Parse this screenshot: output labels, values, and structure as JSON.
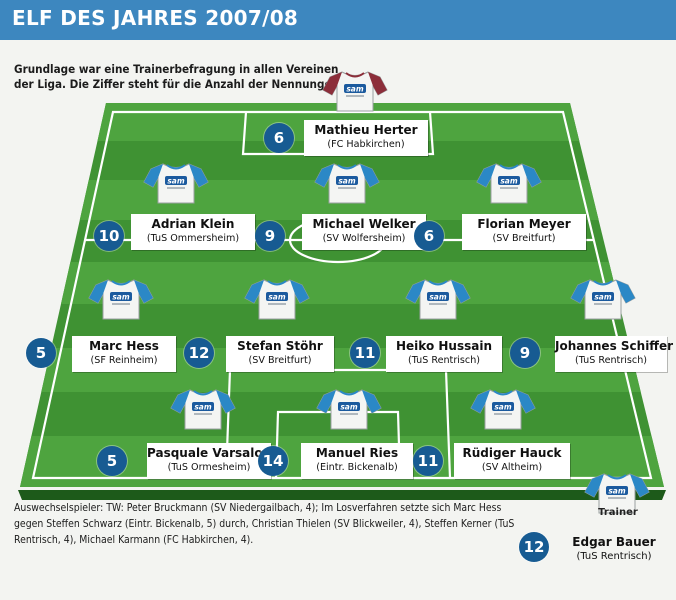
{
  "header": {
    "title": "ELF DES JAHRES 2007/08"
  },
  "intro": {
    "line1": "Grundlage war eine Trainerbefragung in allen Vereinen",
    "line2": "der Liga. Die Ziffer steht für die Anzahl der Nennungen."
  },
  "sponsor": "sam",
  "players": [
    {
      "id": "herter",
      "name": "Mathieu Herter",
      "club": "(FC Habkirchen)",
      "votes": "6",
      "shirt": "goalkeeper"
    },
    {
      "id": "klein",
      "name": "Adrian Klein",
      "club": "(TuS Ommersheim)",
      "votes": "10",
      "shirt": "outfield"
    },
    {
      "id": "welker",
      "name": "Michael Welker",
      "club": "(SV Wolfersheim)",
      "votes": "9",
      "shirt": "outfield"
    },
    {
      "id": "meyer",
      "name": "Florian Meyer",
      "club": "(SV Breitfurt)",
      "votes": "6",
      "shirt": "outfield"
    },
    {
      "id": "hess",
      "name": "Marc Hess",
      "club": "(SF Reinheim)",
      "votes": "5",
      "shirt": "outfield"
    },
    {
      "id": "stoehr",
      "name": "Stefan Stöhr",
      "club": "(SV Breitfurt)",
      "votes": "12",
      "shirt": "outfield"
    },
    {
      "id": "hussain",
      "name": "Heiko Hussain",
      "club": "(TuS Rentrisch)",
      "votes": "11",
      "shirt": "outfield"
    },
    {
      "id": "schiffer",
      "name": "Johannes Schiffer",
      "club": "(TuS Rentrisch)",
      "votes": "9",
      "shirt": "outfield"
    },
    {
      "id": "varsalone",
      "name": "Pasquale Varsalone",
      "club": "(TuS Ormesheim)",
      "votes": "5",
      "shirt": "outfield"
    },
    {
      "id": "ries",
      "name": "Manuel Ries",
      "club": "(Eintr. Bickenalb)",
      "votes": "14",
      "shirt": "outfield"
    },
    {
      "id": "hauck",
      "name": "Rüdiger Hauck",
      "club": "(SV Altheim)",
      "votes": "11",
      "shirt": "outfield"
    }
  ],
  "trainer": {
    "label": "Trainer",
    "name": "Edgar Bauer",
    "club": "(TuS Rentrisch)",
    "votes": "12"
  },
  "footer": {
    "text": "Auswechselspieler: TW: Peter Bruckmann (SV Niedergailbach, 4); Im Losverfahren setzte sich Marc Hess gegen Steffen Schwarz (Eintr. Bickenalb, 5) durch, Christian Thielen (SV Blickweiler, 4), Steffen Kerner (TuS Rentrisch, 4), Michael Karmann (FC Habkirchen, 4)."
  },
  "colors": {
    "header": "#3d87bf",
    "badge": "#175b92",
    "grass_light": "#4a9e3c",
    "grass_dark": "#2f7d2a",
    "shirt_sleeve": "#2b88c6",
    "keeper_sleeve": "#8c2e3a"
  }
}
